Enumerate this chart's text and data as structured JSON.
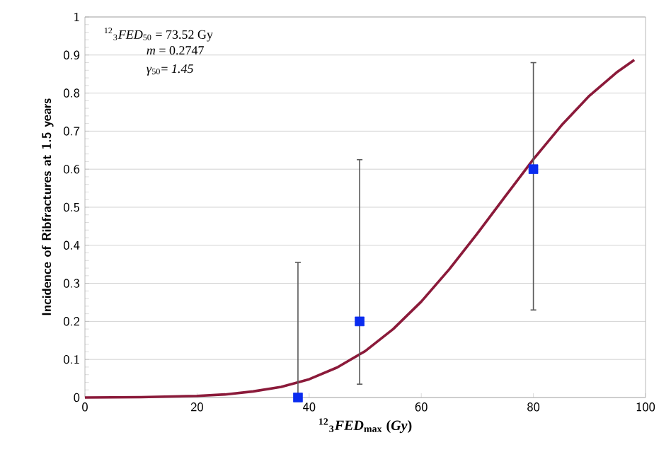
{
  "chart_data": {
    "type": "line",
    "xlabel": "$^{12}$$_{3}$*FED*$_{max}$ (*Gy*)",
    "ylabel": "Incidence of Ribfractures at 1.5 years",
    "annotations": [
      "$^{12}$$_{3}$*FED*$_{50}$ =  73.52 Gy",
      "*m* = 0.2747",
      "*γ*$_{50}$= *1.45*"
    ],
    "series": [
      {
        "color": "#8b1a3a",
        "marker": "none",
        "x": [
          0,
          10,
          20,
          25,
          30,
          35,
          40,
          45,
          50,
          55,
          60,
          65,
          70,
          75,
          80,
          85,
          90,
          95,
          98
        ],
        "values": [
          0,
          0.001,
          0.004,
          0.008,
          0.016,
          0.028,
          0.048,
          0.079,
          0.122,
          0.18,
          0.252,
          0.337,
          0.431,
          0.529,
          0.626,
          0.715,
          0.793,
          0.856,
          0.887
        ]
      },
      {
        "type": "scatter",
        "color": "#0a2cf0",
        "marker": "square",
        "x": [
          38,
          49,
          80
        ],
        "values": [
          0,
          0.2,
          0.6
        ],
        "errors": [
          [
            0,
            0.355
          ],
          [
            0.035,
            0.625
          ],
          [
            0.23,
            0.88
          ]
        ]
      }
    ],
    "xlim": [
      0,
      100
    ],
    "xticks": [
      0,
      20,
      40,
      60,
      80,
      100
    ],
    "ylim": [
      0,
      1
    ],
    "yticks": [
      0,
      0.1,
      0.2,
      0.3,
      0.4,
      0.5,
      0.6,
      0.7,
      0.8,
      0.9,
      1
    ],
    "grid": "y"
  }
}
